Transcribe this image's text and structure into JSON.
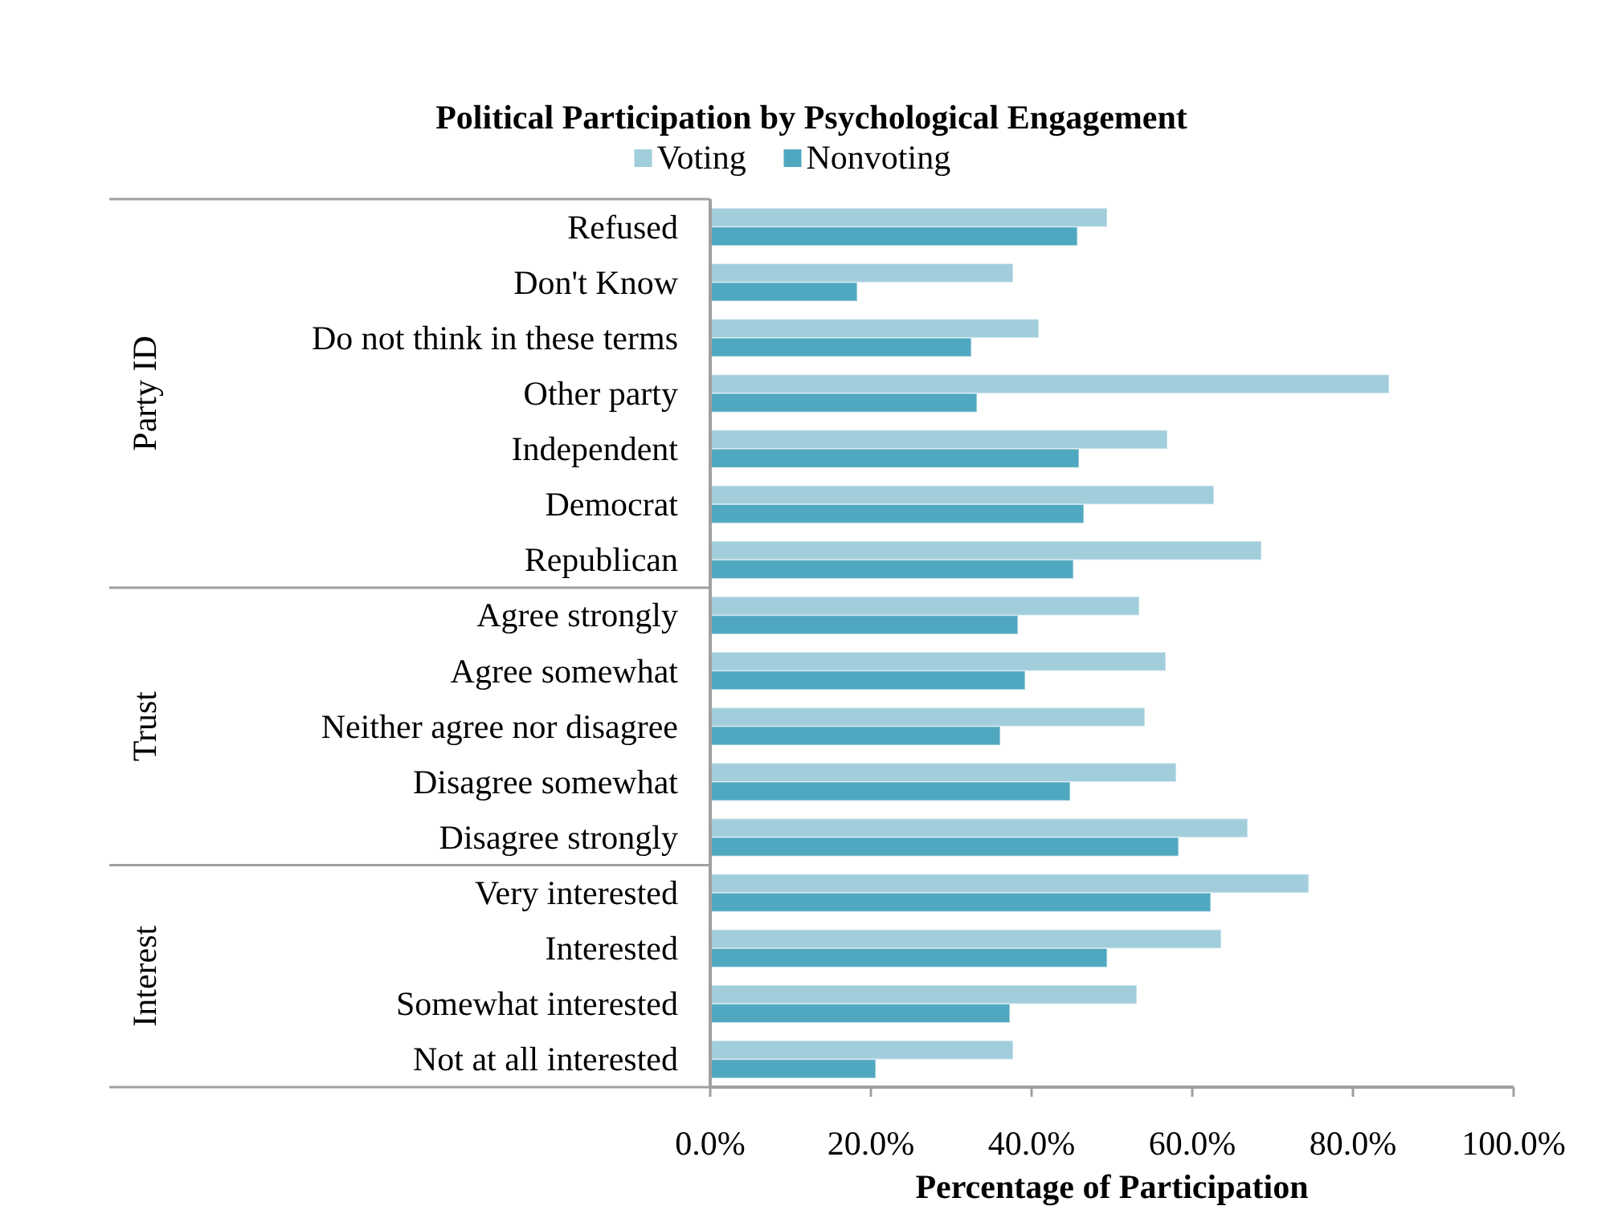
{
  "chart_data": {
    "type": "bar",
    "orientation": "horizontal",
    "title": "Political Participation by Psychological Engagement",
    "xlabel": "Percentage of Participation",
    "categories": [
      "Refused",
      "Don't Know",
      "Do not think in these terms",
      "Other party",
      "Independent",
      "Democrat",
      "Republican",
      "Agree strongly",
      "Agree somewhat",
      "Neither agree nor disagree",
      "Disagree somewhat",
      "Disagree strongly",
      "Very interested",
      "Interested",
      "Somewhat interested",
      "Not at all interested"
    ],
    "series": [
      {
        "name": "Voting",
        "color": "#a2cedc",
        "values": [
          49.4,
          37.7,
          40.9,
          84.5,
          56.9,
          62.7,
          68.6,
          53.4,
          56.7,
          54.1,
          58.0,
          66.9,
          74.5,
          63.6,
          53.1,
          37.7
        ]
      },
      {
        "name": "Nonvoting",
        "color": "#50a8c0",
        "values": [
          45.7,
          18.3,
          32.5,
          33.2,
          45.9,
          46.5,
          45.2,
          38.3,
          39.2,
          36.1,
          44.8,
          58.3,
          62.3,
          49.4,
          37.3,
          20.6
        ]
      }
    ],
    "xlim": [
      0,
      100
    ],
    "xticks": [
      {
        "value": 0,
        "label": "0.0%"
      },
      {
        "value": 20,
        "label": "20.0%"
      },
      {
        "value": 40,
        "label": "40.0%"
      },
      {
        "value": 60,
        "label": "60.0%"
      },
      {
        "value": 80,
        "label": "80.0%"
      },
      {
        "value": 100,
        "label": "100.0%"
      }
    ],
    "annotations": [
      "Party ID",
      "Trust",
      "Interest"
    ],
    "legend": "top",
    "grid": false
  }
}
